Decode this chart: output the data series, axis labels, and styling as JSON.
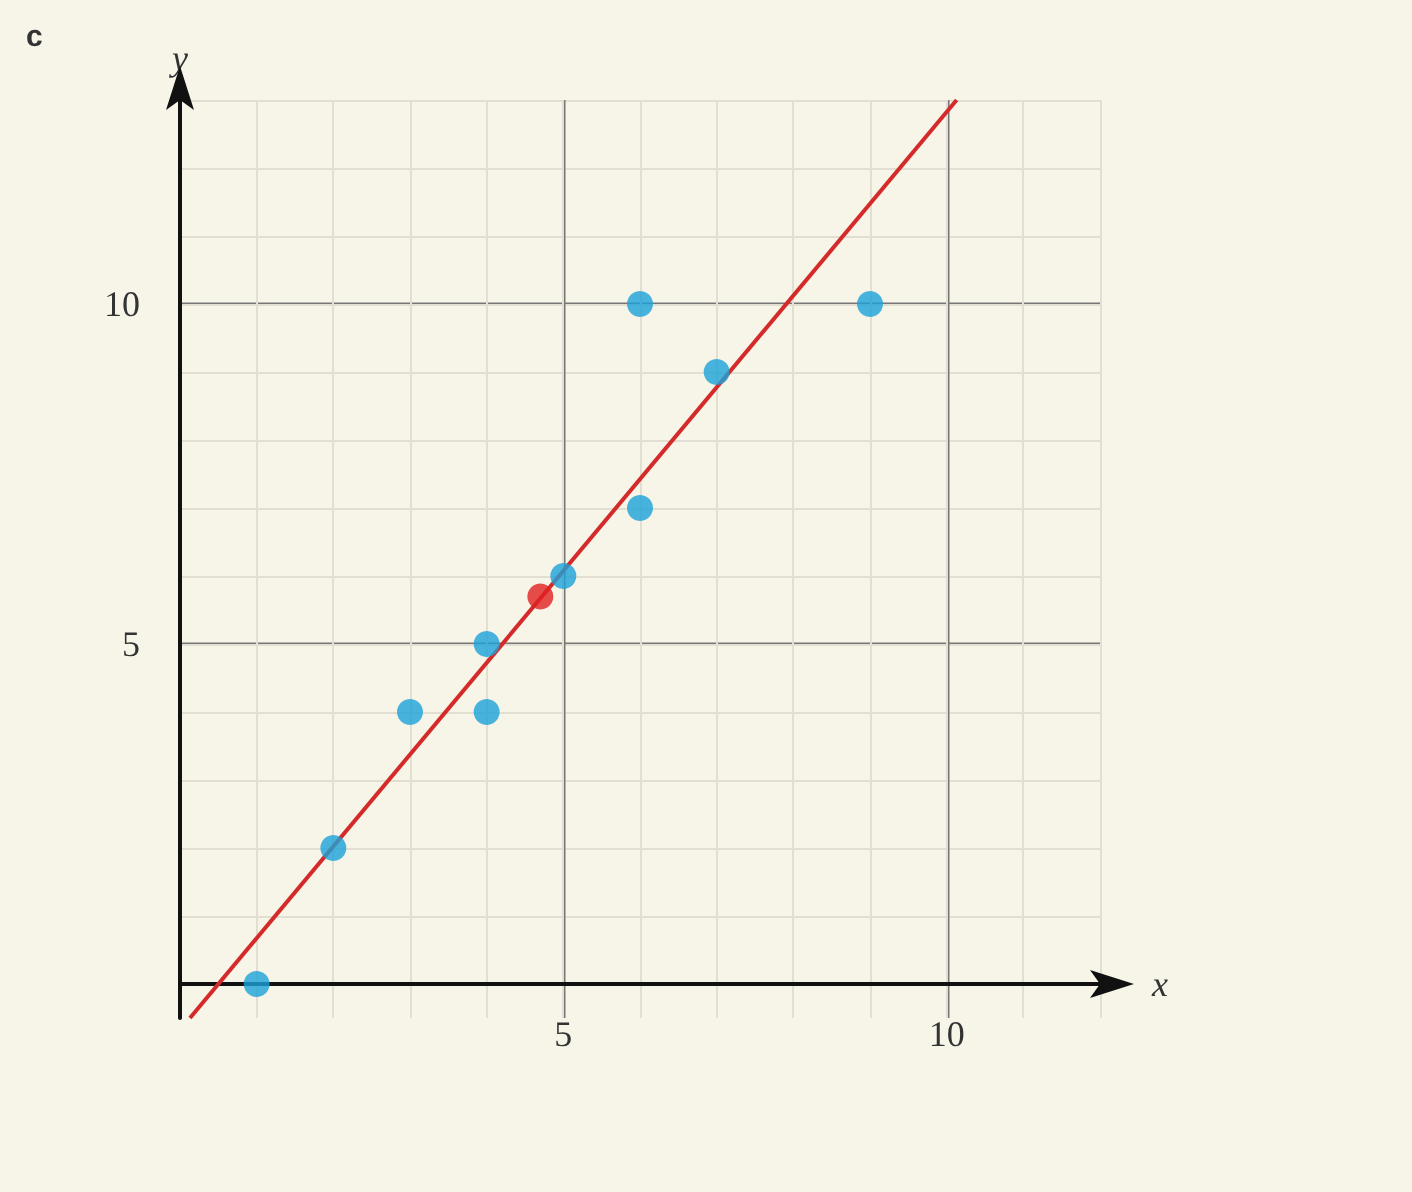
{
  "chart_data": {
    "type": "scatter",
    "title": "c",
    "xlabel": "x",
    "ylabel": "y",
    "xlim": [
      0,
      12
    ],
    "ylim": [
      -0.5,
      13
    ],
    "xticks": [
      5,
      10
    ],
    "yticks": [
      5,
      10
    ],
    "grid": true,
    "marker": "circle",
    "series": [
      {
        "color": "#1aa3d9",
        "x": [
          1,
          2,
          3,
          4,
          4,
          5,
          6,
          6,
          7,
          9
        ],
        "values": [
          0,
          2,
          4,
          4,
          5,
          6,
          7,
          10,
          9,
          10
        ]
      },
      {
        "color": "#e02020",
        "x": [
          4.7
        ],
        "values": [
          5.7
        ]
      },
      {
        "type": "line",
        "color": "#d42a2a",
        "marker": "none",
        "x": [
          0.13,
          10.13
        ],
        "values": [
          -0.5,
          13
        ]
      }
    ]
  }
}
